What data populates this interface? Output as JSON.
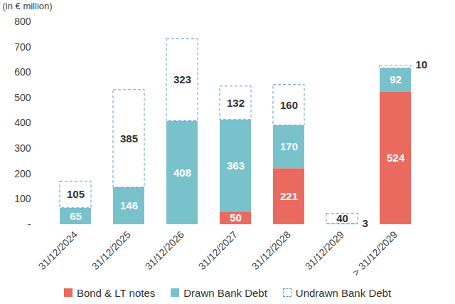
{
  "chart_data": {
    "type": "bar",
    "y_label": "(in € million)",
    "categories": [
      "31/12/2024",
      "31/12/2025",
      "31/12/2026",
      "31/12/2027",
      "31/12/2028",
      "31/12/2029",
      "> 31/12/2029"
    ],
    "series": [
      {
        "name": "Bond & LT notes",
        "color": "#ea6a5f",
        "values": [
          null,
          null,
          null,
          50,
          221,
          null,
          524
        ]
      },
      {
        "name": "Drawn Bank Debt",
        "color": "#79c1cb",
        "values": [
          65,
          146,
          408,
          363,
          170,
          3,
          92
        ]
      },
      {
        "name": "Undrawn Bank Debt",
        "color": "#5b9bd5",
        "line_style": "dashed",
        "values": [
          105,
          385,
          323,
          132,
          160,
          40,
          10
        ]
      }
    ],
    "ylim": [
      0,
      800
    ],
    "yticks": [
      {
        "value": 0,
        "label": "-"
      },
      100,
      200,
      300,
      400,
      500,
      600,
      700,
      800
    ],
    "stacked": true,
    "data_labels": true,
    "grid": false,
    "legend": "bottom"
  }
}
